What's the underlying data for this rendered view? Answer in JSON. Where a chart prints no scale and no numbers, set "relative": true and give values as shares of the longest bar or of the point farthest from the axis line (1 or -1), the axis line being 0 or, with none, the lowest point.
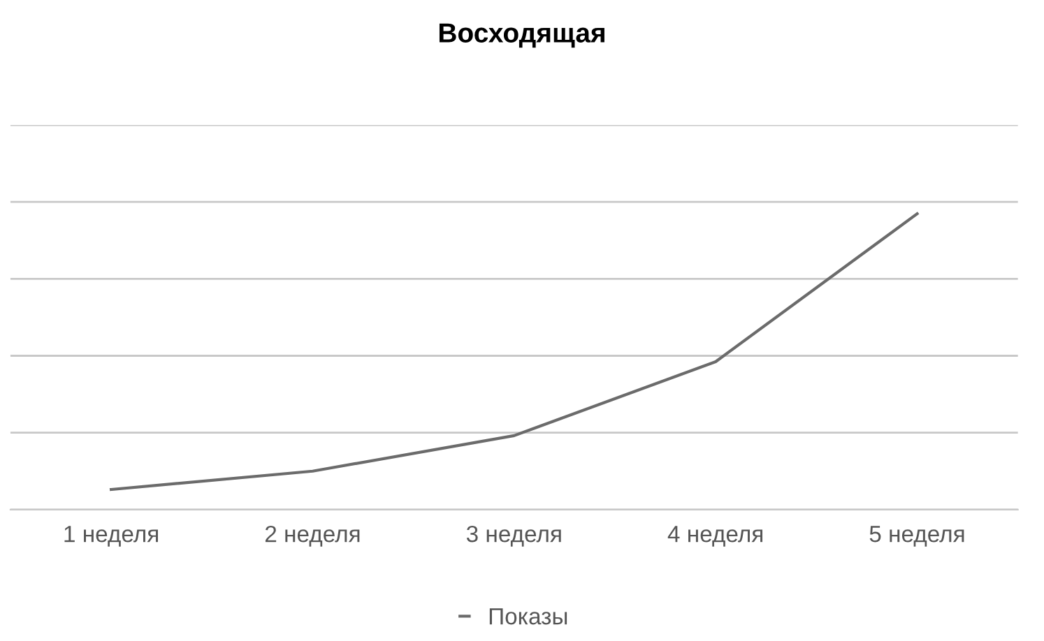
{
  "chart_data": {
    "type": "line",
    "title": "Восходящая",
    "categories": [
      "1 неделя",
      "2 неделя",
      "3 неделя",
      "4 неделя",
      "5 неделя"
    ],
    "series": [
      {
        "name": "Показы",
        "color": "#6b6b6b",
        "values": [
          0.068,
          0.13,
          0.25,
          0.5,
          1
        ]
      }
    ],
    "relative": true,
    "grid": "y",
    "legend": "bottom",
    "marker": "none",
    "line_style": "solid"
  }
}
